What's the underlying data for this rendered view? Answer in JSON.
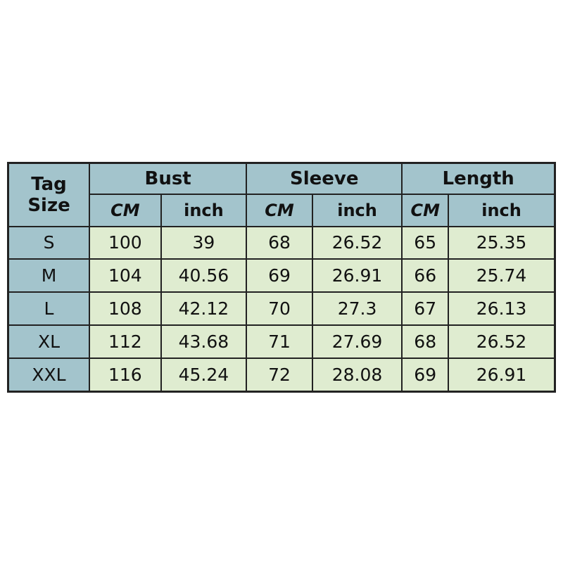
{
  "header": {
    "tag_size_line1": "Tag",
    "tag_size_line2": "Size",
    "groups": [
      "Bust",
      "Sleeve",
      "Length"
    ],
    "units": [
      "CM",
      "inch",
      "CM",
      "inch",
      "CM",
      "inch"
    ]
  },
  "colors": {
    "header_bg": "#a3c4cc",
    "cell_bg": "#dfecd0",
    "border": "#222222"
  },
  "rows": [
    [
      "S",
      "100",
      "39",
      "68",
      "26.52",
      "65",
      "25.35"
    ],
    [
      "M",
      "104",
      "40.56",
      "69",
      "26.91",
      "66",
      "25.74"
    ],
    [
      "L",
      "108",
      "42.12",
      "70",
      "27.3",
      "67",
      "26.13"
    ],
    [
      "XL",
      "112",
      "43.68",
      "71",
      "27.69",
      "68",
      "26.52"
    ],
    [
      "XXL",
      "116",
      "45.24",
      "72",
      "28.08",
      "69",
      "26.91"
    ]
  ]
}
